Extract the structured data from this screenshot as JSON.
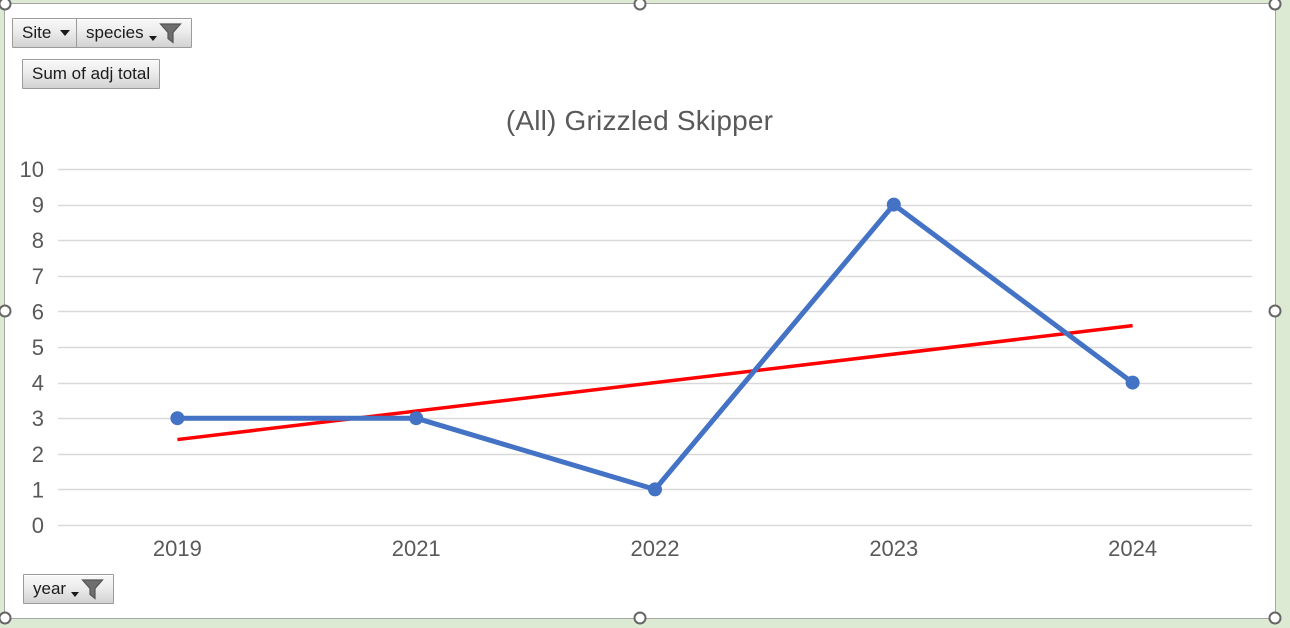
{
  "chart_data": {
    "type": "line",
    "title": "(All) Grizzled Skipper",
    "categories": [
      "2019",
      "2021",
      "2022",
      "2023",
      "2024"
    ],
    "series": [
      {
        "name": "Sum of adj total",
        "values": [
          3,
          3,
          1,
          9,
          4
        ],
        "color": "#4472C4",
        "marker": "circle"
      }
    ],
    "trendline": {
      "type": "linear",
      "start_value": 2.4,
      "end_value": 5.6,
      "color": "#FF0000"
    },
    "xlabel": "",
    "ylabel": "",
    "ylim": [
      0,
      10
    ],
    "y_ticks": [
      0,
      1,
      2,
      3,
      4,
      5,
      6,
      7,
      8,
      9,
      10
    ],
    "grid": true,
    "legend": "none"
  },
  "field_buttons": {
    "site": {
      "label": "Site",
      "has_dropdown": true,
      "has_filter": false
    },
    "species": {
      "label": "species",
      "has_dropdown": true,
      "has_filter": true
    },
    "value": {
      "label": "Sum of adj total",
      "has_dropdown": false,
      "has_filter": false
    },
    "year": {
      "label": "year",
      "has_dropdown": true,
      "has_filter": true
    }
  },
  "colors": {
    "series_blue": "#4472C4",
    "trendline_red": "#FF0000",
    "gridline": "#D9D9D9",
    "axis_text": "#595959",
    "chart_background": "#FFFFFF",
    "worksheet_background": "#DCEAD3",
    "chart_border": "#A6A6A6"
  }
}
